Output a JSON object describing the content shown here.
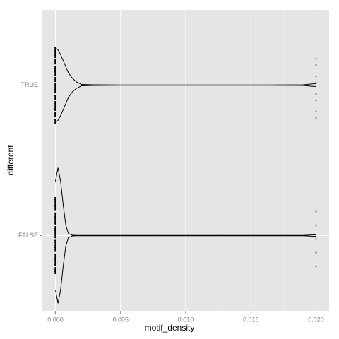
{
  "chart_data": {
    "type": "violin",
    "x_label": "motif_density",
    "y_label": "different",
    "categories": [
      "TRUE",
      "FALSE"
    ],
    "xlim": [
      -0.001,
      0.021
    ],
    "xticks": [
      {
        "value": 0,
        "label": "0.000"
      },
      0.005,
      {
        "value": 0.01,
        "label": "0.010"
      },
      0.015,
      {
        "value": 0.02,
        "label": "0.020"
      }
    ],
    "minor_xticks": [
      0.0025,
      0.0075,
      0.0125,
      0.0175
    ],
    "grid": true,
    "series": [
      {
        "name": "TRUE",
        "color": "#000000",
        "density_x": [
          0,
          0.0002,
          0.0004,
          0.0006,
          0.0008,
          0.001,
          0.0013,
          0.0016,
          0.002,
          0.003,
          0.005,
          0.01,
          0.015,
          0.019,
          0.0198,
          0.02
        ],
        "density": [
          0.55,
          0.52,
          0.45,
          0.36,
          0.27,
          0.18,
          0.1,
          0.05,
          0.01,
          0.005,
          0.002,
          0.002,
          0.002,
          0.005,
          0.02,
          0.02
        ],
        "points": [
          0,
          0,
          0,
          0,
          0,
          0,
          0,
          0,
          0,
          0,
          0,
          0,
          0,
          0,
          0,
          0,
          0,
          0,
          0,
          0,
          0,
          0,
          0,
          0,
          0,
          0,
          0,
          0,
          0,
          0,
          0,
          0,
          0,
          0,
          0,
          0,
          0,
          0,
          0,
          0,
          0.02,
          0.02,
          0.02,
          0.02,
          0.02,
          0.02,
          0.02,
          0.02
        ]
      },
      {
        "name": "FALSE",
        "color": "#000000",
        "density_x": [
          0,
          0.0002,
          0.0004,
          0.0006,
          0.0008,
          0.001,
          0.0013,
          0.0016,
          0.002,
          0.003,
          0.005,
          0.01,
          0.015,
          0.019,
          0.0198,
          0.02
        ],
        "density": [
          0.8,
          1.0,
          0.8,
          0.45,
          0.15,
          0.03,
          0.005,
          0.002,
          0.002,
          0.002,
          0.002,
          0.002,
          0.002,
          0.003,
          0.01,
          0.01
        ],
        "points": [
          0,
          0,
          0,
          0,
          0,
          0,
          0,
          0,
          0,
          0,
          0,
          0,
          0,
          0,
          0,
          0,
          0,
          0,
          0,
          0,
          0,
          0,
          0,
          0,
          0,
          0,
          0,
          0,
          0,
          0,
          0,
          0,
          0,
          0,
          0,
          0,
          0,
          0,
          0,
          0,
          0.02,
          0.02,
          0.02,
          0.02,
          0.02
        ]
      }
    ]
  }
}
